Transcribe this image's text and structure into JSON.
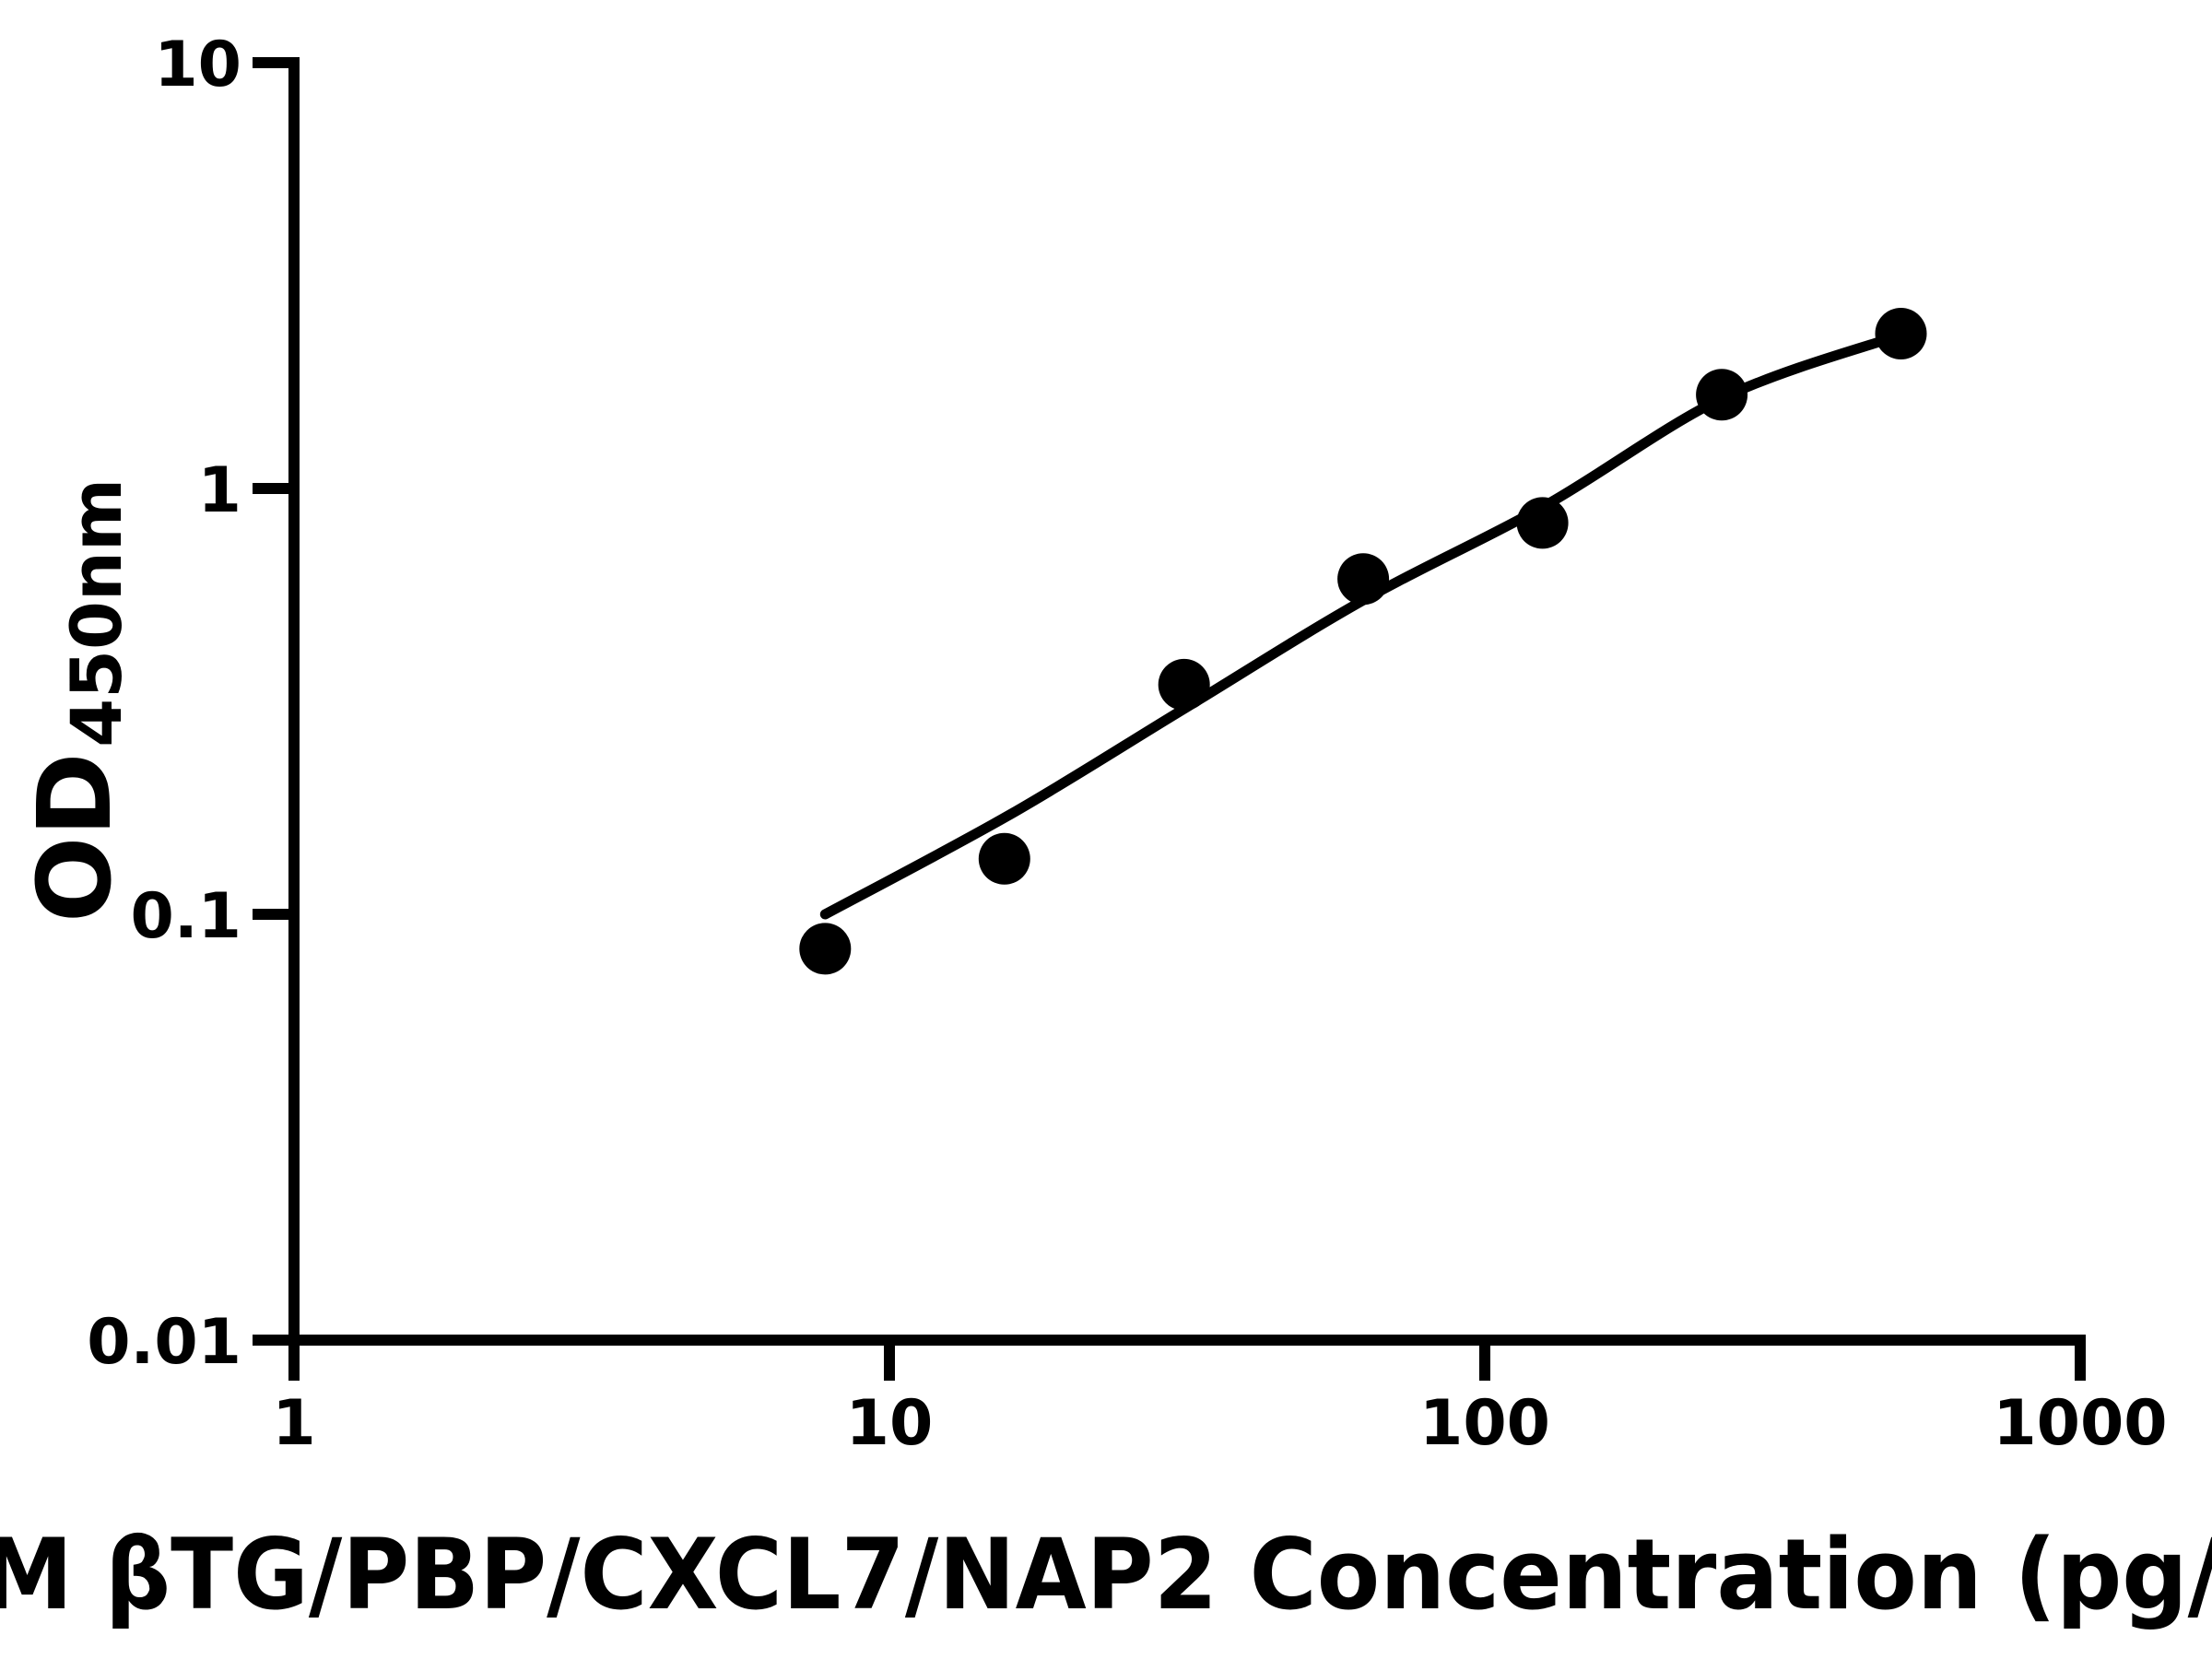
{
  "figure": {
    "background_color": "#ffffff",
    "ink_color": "#000000"
  },
  "y_axis": {
    "label_main": "OD",
    "label_sub": "450nm",
    "ticks": [
      "10",
      "1",
      "0.1",
      "0.01"
    ]
  },
  "x_axis": {
    "ticks": [
      "1",
      "10",
      "100",
      "1000"
    ],
    "title_visible": "M βTG/PBP/CXCL7/NAP2 Concentration (pg/"
  },
  "chart_data": {
    "type": "scatter",
    "x_scale": "log",
    "y_scale": "log",
    "xlim": [
      1,
      1000
    ],
    "ylim": [
      0.01,
      10
    ],
    "x_ticks": [
      1,
      10,
      100,
      1000
    ],
    "y_ticks": [
      10,
      1,
      0.1,
      0.01
    ],
    "xlabel_visible": "M βTG/PBP/CXCL7/NAP2 Concentration (pg/",
    "ylabel": "OD450nm",
    "grid": false,
    "legend": false,
    "marker": {
      "shape": "circle",
      "color": "#000000",
      "radius_px": 28
    },
    "points": [
      {
        "x": 7.8,
        "y": 0.083
      },
      {
        "x": 15.6,
        "y": 0.135
      },
      {
        "x": 31.25,
        "y": 0.346
      },
      {
        "x": 62.5,
        "y": 0.613
      },
      {
        "x": 125,
        "y": 0.83
      },
      {
        "x": 250,
        "y": 1.66
      },
      {
        "x": 500,
        "y": 2.31
      }
    ],
    "fit_curve": [
      {
        "x": 7.8,
        "y": 0.1
      },
      {
        "x": 16,
        "y": 0.172
      },
      {
        "x": 31.4,
        "y": 0.305
      },
      {
        "x": 63,
        "y": 0.55
      },
      {
        "x": 126,
        "y": 0.91
      },
      {
        "x": 253,
        "y": 1.64
      },
      {
        "x": 508,
        "y": 2.31
      }
    ]
  }
}
